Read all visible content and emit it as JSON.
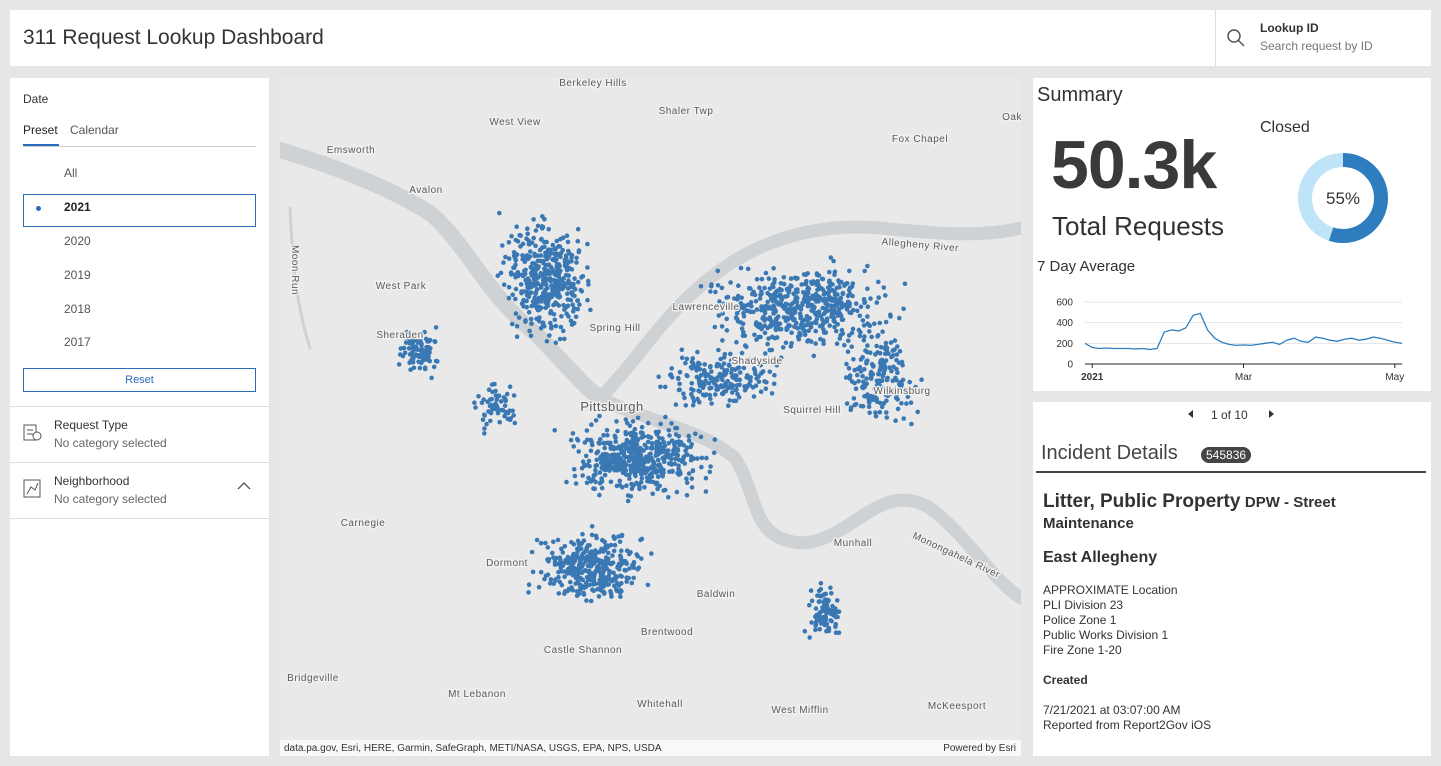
{
  "header": {
    "title": "311 Request Lookup Dashboard",
    "lookup_label": "Lookup ID",
    "lookup_placeholder": "Search request by ID"
  },
  "filters": {
    "date_label": "Date",
    "tabs": [
      "Preset",
      "Calendar"
    ],
    "active_tab": 0,
    "options": [
      "All",
      "2021",
      "2020",
      "2019",
      "2018",
      "2017"
    ],
    "selected_option": 1,
    "reset": "Reset",
    "request_type": {
      "label": "Request Type",
      "status": "No category selected"
    },
    "neighborhood": {
      "label": "Neighborhood",
      "status": "No category selected"
    }
  },
  "map": {
    "labels": [
      "Berkeley Hills",
      "West View",
      "Shaler Twp",
      "Fox Chapel",
      "Oak",
      "Emsworth",
      "Avalon",
      "Allegheny River",
      "West Park",
      "Moon Run",
      "Sheraden",
      "Spring Hill",
      "Lawrenceville",
      "Shadyside",
      "Pittsburgh",
      "Squirrel Hill",
      "Wilkinsburg",
      "Carnegie",
      "Dormont",
      "Munhall",
      "Monongahela River",
      "Baldwin",
      "Brentwood",
      "Castle Shannon",
      "Bridgeville",
      "Mt Lebanon",
      "Whitehall",
      "West Mifflin",
      "McKeesport"
    ],
    "attribution": "data.pa.gov, Esri, HERE, Garmin, SafeGraph, METI/NASA, USGS, EPA, NPS, USDA",
    "powered_by": "Powered by Esri"
  },
  "summary": {
    "title": "Summary",
    "total": "50.3k",
    "total_label": "Total Requests",
    "closed_label": "Closed",
    "closed": 55,
    "closed_label_value": "55%"
  },
  "chart_data": {
    "type": "line",
    "title": "7 Day Average",
    "x": [
      0,
      1,
      2,
      3,
      4,
      5,
      6,
      7,
      8,
      9,
      10,
      11,
      12,
      13,
      14,
      15,
      16,
      17,
      18,
      19,
      20,
      21,
      22,
      23,
      24,
      25,
      26,
      27,
      28,
      29,
      30,
      31,
      32,
      33,
      34,
      35,
      36,
      37,
      38,
      39,
      40,
      41,
      42,
      43,
      44
    ],
    "values": [
      200,
      160,
      150,
      155,
      150,
      150,
      150,
      145,
      150,
      140,
      150,
      310,
      330,
      320,
      350,
      470,
      490,
      330,
      250,
      210,
      190,
      180,
      185,
      180,
      190,
      200,
      210,
      190,
      230,
      250,
      220,
      210,
      260,
      250,
      230,
      220,
      240,
      250,
      230,
      240,
      260,
      250,
      230,
      210,
      200
    ],
    "color": "#2e7ebf",
    "xlim": [
      0,
      44
    ],
    "xticks": [
      {
        "value": 1,
        "label": "2021"
      },
      {
        "value": 22,
        "label": "Mar"
      },
      {
        "value": 43,
        "label": "May"
      }
    ],
    "ylim": [
      0,
      600
    ],
    "yticks": [
      0,
      200,
      400,
      600
    ],
    "grid": true
  },
  "incident": {
    "pager": "1 of 10",
    "title": "Incident Details",
    "id": "545836",
    "type": "Litter, Public Property",
    "department": "DPW - Street Maintenance",
    "neighborhood": "East Allegheny",
    "details": [
      "APPROXIMATE Location",
      "PLI Division 23",
      "Police Zone 1",
      "Public Works Division 1",
      "Fire Zone 1-20"
    ],
    "created_label": "Created",
    "created": [
      "7/21/2021 at 03:07:00 AM",
      "Reported from Report2Gov iOS"
    ]
  }
}
